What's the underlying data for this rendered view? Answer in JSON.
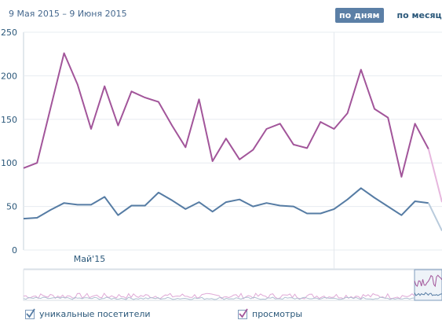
{
  "header": {
    "date_range": "9 Мая 2015 – 9 Июня 2015",
    "tab_days": "по дням",
    "tab_months": "по месяцам"
  },
  "legend": {
    "visitors_label": "уникальные посетители",
    "views_label": "просмотры",
    "visitors_checked": true,
    "views_checked": true
  },
  "colors": {
    "visitors": "#567ca4",
    "views": "#a2559a",
    "grid": "#e7ecf0",
    "axis_text": "#2b587a"
  },
  "chart_data": {
    "type": "line",
    "x": [
      "2015-05-09",
      "2015-05-10",
      "2015-05-11",
      "2015-05-12",
      "2015-05-13",
      "2015-05-14",
      "2015-05-15",
      "2015-05-16",
      "2015-05-17",
      "2015-05-18",
      "2015-05-19",
      "2015-05-20",
      "2015-05-21",
      "2015-05-22",
      "2015-05-23",
      "2015-05-24",
      "2015-05-25",
      "2015-05-26",
      "2015-05-27",
      "2015-05-28",
      "2015-05-29",
      "2015-05-30",
      "2015-05-31",
      "2015-06-01",
      "2015-06-02",
      "2015-06-03",
      "2015-06-04",
      "2015-06-05",
      "2015-06-06",
      "2015-06-07",
      "2015-06-08",
      "2015-06-09"
    ],
    "xtick_labels": [
      "Май'15"
    ],
    "ylim": [
      0,
      250
    ],
    "yticks": [
      0,
      50,
      100,
      150,
      200,
      250
    ],
    "grid": true,
    "series": [
      {
        "name": "просмотры",
        "values": [
          94,
          100,
          163,
          226,
          190,
          139,
          188,
          143,
          182,
          175,
          170,
          143,
          118,
          173,
          102,
          128,
          104,
          115,
          139,
          145,
          121,
          117,
          147,
          139,
          157,
          207,
          162,
          152,
          84,
          145,
          116,
          55
        ]
      },
      {
        "name": "уникальные посетители",
        "values": [
          36,
          37,
          46,
          54,
          52,
          52,
          61,
          40,
          51,
          51,
          66,
          57,
          47,
          55,
          44,
          55,
          58,
          50,
          54,
          51,
          50,
          42,
          42,
          47,
          58,
          71,
          60,
          50,
          40,
          56,
          54,
          22
        ]
      }
    ]
  }
}
